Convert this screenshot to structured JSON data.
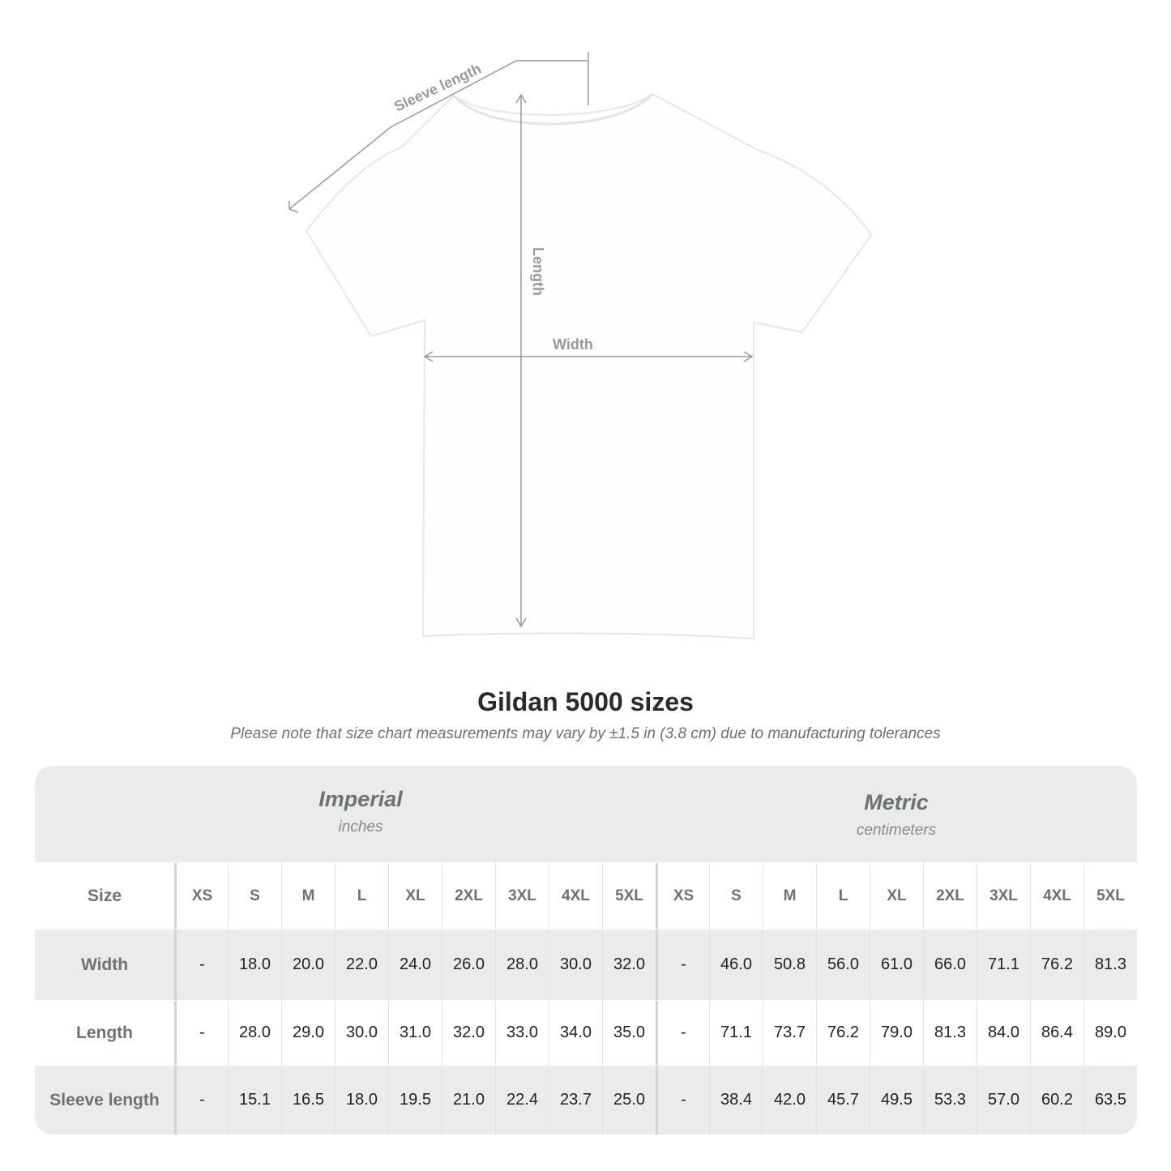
{
  "diagram": {
    "labels": {
      "sleeve": "Sleeve length",
      "length": "Length",
      "width": "Width"
    },
    "line_color": "#9a9a9a"
  },
  "title": "Gildan 5000 sizes",
  "subtitle": "Please note that size chart measurements may vary by ±1.5 in (3.8 cm) due to manufacturing tolerances",
  "table": {
    "imperial": {
      "name": "Imperial",
      "unit": "inches"
    },
    "metric": {
      "name": "Metric",
      "unit": "centimeters"
    },
    "size_label": "Size",
    "sizes": [
      "XS",
      "S",
      "M",
      "L",
      "XL",
      "2XL",
      "3XL",
      "4XL",
      "5XL"
    ],
    "rows": [
      {
        "label": "Width",
        "imperial": [
          "-",
          "18.0",
          "20.0",
          "22.0",
          "24.0",
          "26.0",
          "28.0",
          "30.0",
          "32.0"
        ],
        "metric": [
          "-",
          "46.0",
          "50.8",
          "56.0",
          "61.0",
          "66.0",
          "71.1",
          "76.2",
          "81.3"
        ]
      },
      {
        "label": "Length",
        "imperial": [
          "-",
          "28.0",
          "29.0",
          "30.0",
          "31.0",
          "32.0",
          "33.0",
          "34.0",
          "35.0"
        ],
        "metric": [
          "-",
          "71.1",
          "73.7",
          "76.2",
          "79.0",
          "81.3",
          "84.0",
          "86.4",
          "89.0"
        ]
      },
      {
        "label": "Sleeve length",
        "imperial": [
          "-",
          "15.1",
          "16.5",
          "18.0",
          "19.5",
          "21.0",
          "22.4",
          "23.7",
          "25.0"
        ],
        "metric": [
          "-",
          "38.4",
          "42.0",
          "45.7",
          "49.5",
          "53.3",
          "57.0",
          "60.2",
          "63.5"
        ]
      }
    ],
    "colors": {
      "band": "#ebebeb",
      "header_text": "#6d7274"
    }
  }
}
